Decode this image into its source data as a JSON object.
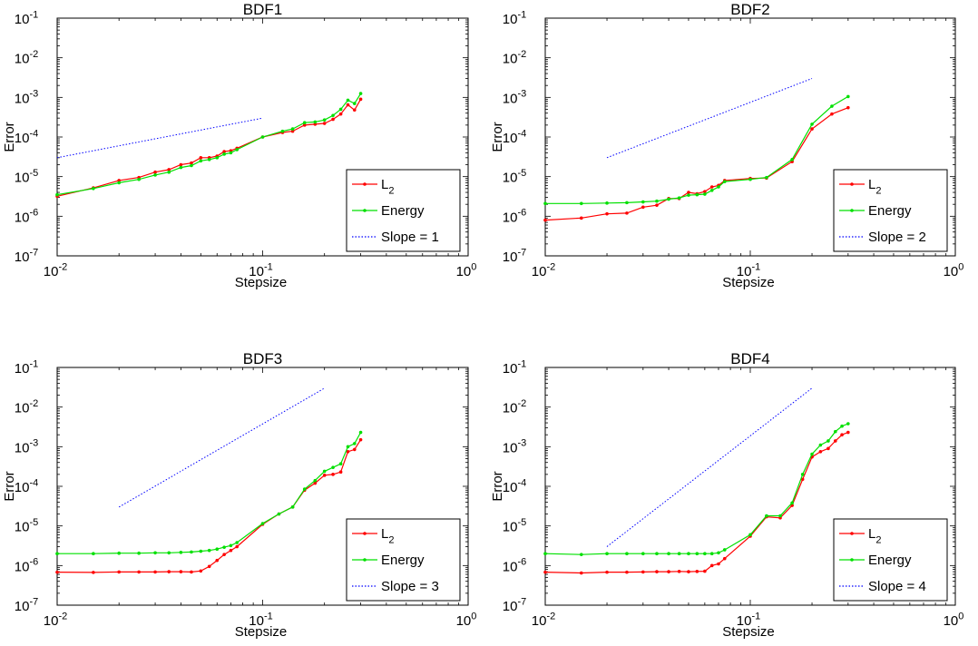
{
  "chart_data": [
    {
      "type": "line",
      "title": "BDF1",
      "xlabel": "Stepsize",
      "ylabel": "Error",
      "xscale": "log",
      "yscale": "log",
      "xlim": [
        0.01,
        1
      ],
      "ylim": [
        1e-07,
        0.1
      ],
      "xticks": [
        "10^-2",
        "10^-1",
        "10^0"
      ],
      "yticks": [
        "10^-7",
        "10^-6",
        "10^-5",
        "10^-4",
        "10^-3",
        "10^-2",
        "10^-1"
      ],
      "grid": false,
      "legend_position": "bottom-right",
      "series": [
        {
          "name": "L_2",
          "style": "solid-dot",
          "color": "#ff0000",
          "x": [
            0.01,
            0.015,
            0.02,
            0.025,
            0.03,
            0.035,
            0.04,
            0.045,
            0.05,
            0.055,
            0.06,
            0.065,
            0.07,
            0.075,
            0.1,
            0.125,
            0.14,
            0.16,
            0.18,
            0.2,
            0.22,
            0.24,
            0.26,
            0.28,
            0.3
          ],
          "y": [
            3.2e-06,
            5.2e-06,
            8e-06,
            9.5e-06,
            1.3e-05,
            1.5e-05,
            2e-05,
            2.2e-05,
            3e-05,
            3e-05,
            3.3e-05,
            4.3e-05,
            4.5e-05,
            5.2e-05,
            0.0001,
            0.00013,
            0.00014,
            0.0002,
            0.00021,
            0.00022,
            0.00028,
            0.00038,
            0.00065,
            0.00048,
            0.0009
          ]
        },
        {
          "name": "Energy",
          "style": "solid-dot",
          "color": "#00e000",
          "x": [
            0.01,
            0.015,
            0.02,
            0.025,
            0.03,
            0.035,
            0.04,
            0.045,
            0.05,
            0.055,
            0.06,
            0.065,
            0.07,
            0.075,
            0.1,
            0.125,
            0.14,
            0.16,
            0.18,
            0.2,
            0.22,
            0.24,
            0.26,
            0.28,
            0.3
          ],
          "y": [
            3.5e-06,
            5e-06,
            7e-06,
            8.5e-06,
            1.1e-05,
            1.3e-05,
            1.7e-05,
            1.9e-05,
            2.5e-05,
            2.7e-05,
            3e-05,
            3.7e-05,
            4e-05,
            4.8e-05,
            0.0001,
            0.00014,
            0.00016,
            0.00023,
            0.00024,
            0.00027,
            0.00035,
            0.0005,
            0.00085,
            0.0007,
            0.00125
          ]
        },
        {
          "name": "Slope = 1",
          "style": "dotted",
          "color": "#0000ff",
          "x": [
            0.01,
            0.1
          ],
          "y": [
            3e-05,
            0.0003
          ]
        }
      ]
    },
    {
      "type": "line",
      "title": "BDF2",
      "xlabel": "Stepsize",
      "ylabel": "Error",
      "xscale": "log",
      "yscale": "log",
      "xlim": [
        0.01,
        1
      ],
      "ylim": [
        1e-07,
        0.1
      ],
      "xticks": [
        "10^-2",
        "10^-1",
        "10^0"
      ],
      "yticks": [
        "10^-7",
        "10^-6",
        "10^-5",
        "10^-4",
        "10^-3",
        "10^-2",
        "10^-1"
      ],
      "grid": false,
      "legend_position": "bottom-right",
      "series": [
        {
          "name": "L_2",
          "style": "solid-dot",
          "color": "#ff0000",
          "x": [
            0.01,
            0.015,
            0.02,
            0.025,
            0.03,
            0.035,
            0.04,
            0.045,
            0.05,
            0.055,
            0.06,
            0.065,
            0.07,
            0.075,
            0.1,
            0.12,
            0.16,
            0.2,
            0.25,
            0.3
          ],
          "y": [
            8e-07,
            9e-07,
            1.15e-06,
            1.2e-06,
            1.7e-06,
            1.9e-06,
            2.8e-06,
            2.8e-06,
            4e-06,
            3.7e-06,
            4.2e-06,
            5.5e-06,
            6e-06,
            8e-06,
            9e-06,
            9.2e-06,
            2.4e-05,
            0.00016,
            0.00038,
            0.00055
          ]
        },
        {
          "name": "Energy",
          "style": "solid-dot",
          "color": "#00e000",
          "x": [
            0.01,
            0.015,
            0.02,
            0.025,
            0.03,
            0.035,
            0.04,
            0.045,
            0.05,
            0.055,
            0.06,
            0.065,
            0.07,
            0.075,
            0.1,
            0.12,
            0.16,
            0.2,
            0.25,
            0.3
          ],
          "y": [
            2.1e-06,
            2.1e-06,
            2.15e-06,
            2.2e-06,
            2.3e-06,
            2.4e-06,
            2.7e-06,
            2.9e-06,
            3.4e-06,
            3.5e-06,
            3.6e-06,
            4.5e-06,
            5.5e-06,
            7.5e-06,
            8.5e-06,
            9.5e-06,
            2.7e-05,
            0.00021,
            0.0006,
            0.00105
          ]
        },
        {
          "name": "Slope = 2",
          "style": "dotted",
          "color": "#0000ff",
          "x": [
            0.02,
            0.2
          ],
          "y": [
            3e-05,
            0.003
          ]
        }
      ]
    },
    {
      "type": "line",
      "title": "BDF3",
      "xlabel": "Stepsize",
      "ylabel": "Error",
      "xscale": "log",
      "yscale": "log",
      "xlim": [
        0.01,
        1
      ],
      "ylim": [
        1e-07,
        0.1
      ],
      "xticks": [
        "10^-2",
        "10^-1",
        "10^0"
      ],
      "yticks": [
        "10^-7",
        "10^-6",
        "10^-5",
        "10^-4",
        "10^-3",
        "10^-2",
        "10^-1"
      ],
      "grid": false,
      "legend_position": "bottom-right",
      "series": [
        {
          "name": "L_2",
          "style": "solid-dot",
          "color": "#ff0000",
          "x": [
            0.01,
            0.015,
            0.02,
            0.025,
            0.03,
            0.035,
            0.04,
            0.045,
            0.05,
            0.055,
            0.06,
            0.065,
            0.07,
            0.075,
            0.1,
            0.12,
            0.14,
            0.16,
            0.18,
            0.2,
            0.22,
            0.24,
            0.26,
            0.28,
            0.3
          ],
          "y": [
            6.8e-07,
            6.7e-07,
            6.9e-07,
            6.9e-07,
            6.9e-07,
            7e-07,
            7e-07,
            6.9e-07,
            7.3e-07,
            9.5e-07,
            1.35e-06,
            1.9e-06,
            2.4e-06,
            3e-06,
            1.1e-05,
            2e-05,
            3e-05,
            8e-05,
            0.00012,
            0.00019,
            0.0002,
            0.00023,
            0.00075,
            0.00085,
            0.0015
          ]
        },
        {
          "name": "Energy",
          "style": "solid-dot",
          "color": "#00e000",
          "x": [
            0.01,
            0.015,
            0.02,
            0.025,
            0.03,
            0.035,
            0.04,
            0.045,
            0.05,
            0.055,
            0.06,
            0.065,
            0.07,
            0.075,
            0.1,
            0.12,
            0.14,
            0.16,
            0.18,
            0.2,
            0.22,
            0.24,
            0.26,
            0.28,
            0.3
          ],
          "y": [
            2e-06,
            2e-06,
            2.05e-06,
            2.05e-06,
            2.1e-06,
            2.1e-06,
            2.15e-06,
            2.2e-06,
            2.3e-06,
            2.4e-06,
            2.6e-06,
            2.9e-06,
            3.2e-06,
            3.8e-06,
            1.15e-05,
            2e-05,
            3e-05,
            8.5e-05,
            0.00014,
            0.00024,
            0.0003,
            0.00037,
            0.001,
            0.0012,
            0.0023
          ]
        },
        {
          "name": "Slope = 3",
          "style": "dotted",
          "color": "#0000ff",
          "x": [
            0.02,
            0.2
          ],
          "y": [
            3e-05,
            0.03
          ]
        }
      ]
    },
    {
      "type": "line",
      "title": "BDF4",
      "xlabel": "Stepsize",
      "ylabel": "Error",
      "xscale": "log",
      "yscale": "log",
      "xlim": [
        0.01,
        1
      ],
      "ylim": [
        1e-07,
        0.1
      ],
      "xticks": [
        "10^-2",
        "10^-1",
        "10^0"
      ],
      "yticks": [
        "10^-7",
        "10^-6",
        "10^-5",
        "10^-4",
        "10^-3",
        "10^-2",
        "10^-1"
      ],
      "grid": false,
      "legend_position": "bottom-right",
      "series": [
        {
          "name": "L_2",
          "style": "solid-dot",
          "color": "#ff0000",
          "x": [
            0.01,
            0.015,
            0.02,
            0.025,
            0.03,
            0.035,
            0.04,
            0.045,
            0.05,
            0.055,
            0.06,
            0.065,
            0.07,
            0.075,
            0.1,
            0.12,
            0.14,
            0.16,
            0.18,
            0.2,
            0.22,
            0.24,
            0.26,
            0.28,
            0.3
          ],
          "y": [
            6.8e-07,
            6.5e-07,
            6.8e-07,
            6.8e-07,
            6.9e-07,
            7e-07,
            7e-07,
            7.1e-07,
            7e-07,
            7.1e-07,
            7.2e-07,
            1e-06,
            1.1e-06,
            1.5e-06,
            5.5e-06,
            1.7e-05,
            1.6e-05,
            3.3e-05,
            0.00015,
            0.00055,
            0.00075,
            0.0009,
            0.0014,
            0.002,
            0.0023
          ]
        },
        {
          "name": "Energy",
          "style": "solid-dot",
          "color": "#00e000",
          "x": [
            0.01,
            0.015,
            0.02,
            0.025,
            0.03,
            0.035,
            0.04,
            0.045,
            0.05,
            0.055,
            0.06,
            0.065,
            0.07,
            0.075,
            0.1,
            0.12,
            0.14,
            0.16,
            0.18,
            0.2,
            0.22,
            0.24,
            0.26,
            0.28,
            0.3
          ],
          "y": [
            2e-06,
            1.9e-06,
            2e-06,
            2e-06,
            2e-06,
            2e-06,
            2e-06,
            2e-06,
            2e-06,
            2e-06,
            2e-06,
            2e-06,
            2.1e-06,
            2.5e-06,
            6e-06,
            1.8e-05,
            1.8e-05,
            3.8e-05,
            0.0002,
            0.00065,
            0.0011,
            0.0014,
            0.0024,
            0.0033,
            0.0038
          ]
        },
        {
          "name": "Slope = 4",
          "style": "dotted",
          "color": "#0000ff",
          "x": [
            0.02,
            0.2
          ],
          "y": [
            3e-06,
            0.03
          ]
        }
      ]
    }
  ]
}
